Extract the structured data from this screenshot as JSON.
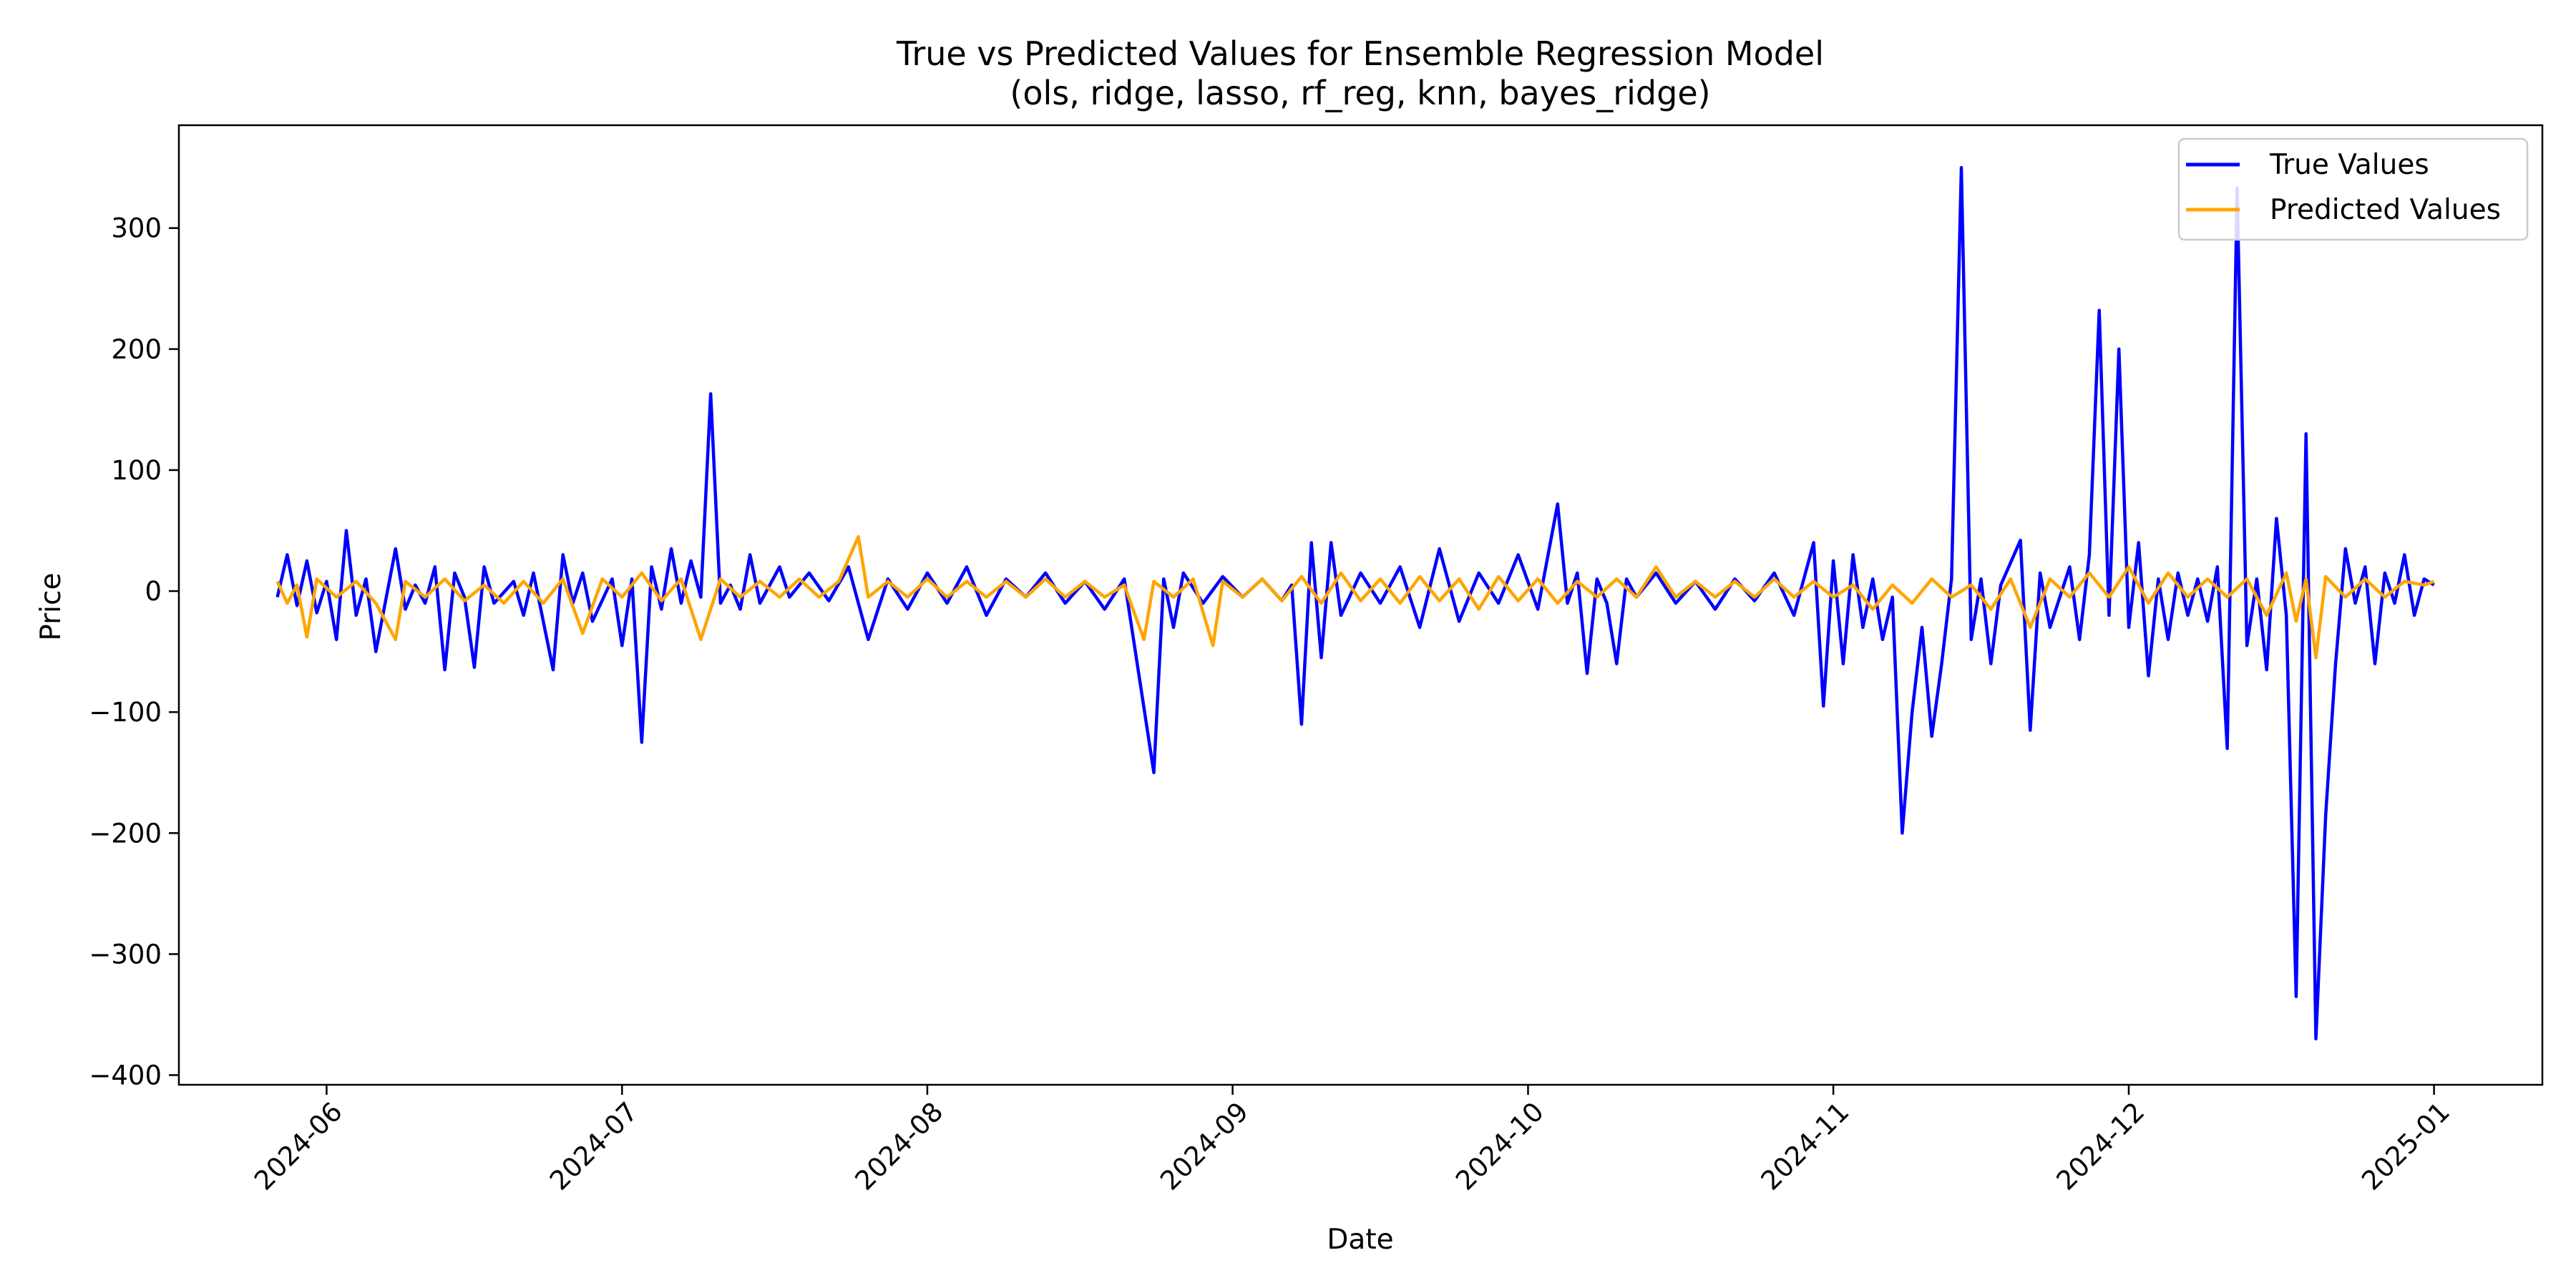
{
  "chart_data": {
    "type": "line",
    "title": "True vs Predicted Values for Ensemble Regression Model",
    "subtitle": "(ols, ridge, lasso, rf_reg, knn, bayes_ridge)",
    "xlabel": "Date",
    "ylabel": "Price",
    "x_range": [
      "2024-05-17",
      "2025-01-12"
    ],
    "ylim": [
      -408,
      385
    ],
    "x_ticks": [
      "2024-06",
      "2024-07",
      "2024-08",
      "2024-09",
      "2024-10",
      "2024-11",
      "2024-12",
      "2025-01"
    ],
    "y_ticks": [
      300,
      200,
      100,
      0,
      -100,
      -200,
      -300,
      -400
    ],
    "y_tick_labels": [
      "300",
      "200",
      "100",
      "0",
      "−100",
      "−200",
      "−300",
      "−400"
    ],
    "legend_position": "upper right",
    "grid": false,
    "series": [
      {
        "name": "True Values",
        "color": "#0000ff",
        "points": [
          [
            "2024-05-27",
            -5
          ],
          [
            "2024-05-28",
            30
          ],
          [
            "2024-05-29",
            -12
          ],
          [
            "2024-05-30",
            25
          ],
          [
            "2024-05-31",
            -18
          ],
          [
            "2024-06-01",
            8
          ],
          [
            "2024-06-02",
            -40
          ],
          [
            "2024-06-03",
            50
          ],
          [
            "2024-06-04",
            -20
          ],
          [
            "2024-06-05",
            10
          ],
          [
            "2024-06-06",
            -50
          ],
          [
            "2024-06-08",
            35
          ],
          [
            "2024-06-09",
            -15
          ],
          [
            "2024-06-10",
            5
          ],
          [
            "2024-06-11",
            -10
          ],
          [
            "2024-06-12",
            20
          ],
          [
            "2024-06-13",
            -65
          ],
          [
            "2024-06-14",
            15
          ],
          [
            "2024-06-15",
            -5
          ],
          [
            "2024-06-16",
            -63
          ],
          [
            "2024-06-17",
            20
          ],
          [
            "2024-06-18",
            -10
          ],
          [
            "2024-06-20",
            8
          ],
          [
            "2024-06-21",
            -20
          ],
          [
            "2024-06-22",
            15
          ],
          [
            "2024-06-24",
            -65
          ],
          [
            "2024-06-25",
            30
          ],
          [
            "2024-06-26",
            -10
          ],
          [
            "2024-06-27",
            15
          ],
          [
            "2024-06-28",
            -25
          ],
          [
            "2024-06-30",
            10
          ],
          [
            "2024-07-01",
            -45
          ],
          [
            "2024-07-02",
            10
          ],
          [
            "2024-07-03",
            -125
          ],
          [
            "2024-07-04",
            20
          ],
          [
            "2024-07-05",
            -15
          ],
          [
            "2024-07-06",
            35
          ],
          [
            "2024-07-07",
            -10
          ],
          [
            "2024-07-08",
            25
          ],
          [
            "2024-07-09",
            -5
          ],
          [
            "2024-07-10",
            163
          ],
          [
            "2024-07-11",
            -10
          ],
          [
            "2024-07-12",
            5
          ],
          [
            "2024-07-13",
            -15
          ],
          [
            "2024-07-14",
            30
          ],
          [
            "2024-07-15",
            -10
          ],
          [
            "2024-07-17",
            20
          ],
          [
            "2024-07-18",
            -5
          ],
          [
            "2024-07-20",
            15
          ],
          [
            "2024-07-22",
            -8
          ],
          [
            "2024-07-24",
            20
          ],
          [
            "2024-07-26",
            -40
          ],
          [
            "2024-07-28",
            10
          ],
          [
            "2024-07-30",
            -15
          ],
          [
            "2024-08-01",
            15
          ],
          [
            "2024-08-03",
            -10
          ],
          [
            "2024-08-05",
            20
          ],
          [
            "2024-08-07",
            -20
          ],
          [
            "2024-08-09",
            10
          ],
          [
            "2024-08-11",
            -5
          ],
          [
            "2024-08-13",
            15
          ],
          [
            "2024-08-15",
            -10
          ],
          [
            "2024-08-17",
            8
          ],
          [
            "2024-08-19",
            -15
          ],
          [
            "2024-08-21",
            10
          ],
          [
            "2024-08-24",
            -150
          ],
          [
            "2024-08-25",
            10
          ],
          [
            "2024-08-26",
            -30
          ],
          [
            "2024-08-27",
            15
          ],
          [
            "2024-08-29",
            -10
          ],
          [
            "2024-08-31",
            12
          ],
          [
            "2024-09-02",
            -5
          ],
          [
            "2024-09-04",
            10
          ],
          [
            "2024-09-06",
            -8
          ],
          [
            "2024-09-07",
            5
          ],
          [
            "2024-09-08",
            -110
          ],
          [
            "2024-09-09",
            40
          ],
          [
            "2024-09-10",
            -55
          ],
          [
            "2024-09-11",
            40
          ],
          [
            "2024-09-12",
            -20
          ],
          [
            "2024-09-14",
            15
          ],
          [
            "2024-09-16",
            -10
          ],
          [
            "2024-09-18",
            20
          ],
          [
            "2024-09-20",
            -30
          ],
          [
            "2024-09-22",
            35
          ],
          [
            "2024-09-24",
            -25
          ],
          [
            "2024-09-26",
            15
          ],
          [
            "2024-09-28",
            -10
          ],
          [
            "2024-09-30",
            30
          ],
          [
            "2024-10-02",
            -15
          ],
          [
            "2024-10-04",
            72
          ],
          [
            "2024-10-05",
            -10
          ],
          [
            "2024-10-06",
            15
          ],
          [
            "2024-10-07",
            -68
          ],
          [
            "2024-10-08",
            10
          ],
          [
            "2024-10-09",
            -10
          ],
          [
            "2024-10-10",
            -60
          ],
          [
            "2024-10-11",
            10
          ],
          [
            "2024-10-12",
            -5
          ],
          [
            "2024-10-14",
            15
          ],
          [
            "2024-10-16",
            -10
          ],
          [
            "2024-10-18",
            8
          ],
          [
            "2024-10-20",
            -15
          ],
          [
            "2024-10-22",
            10
          ],
          [
            "2024-10-24",
            -8
          ],
          [
            "2024-10-26",
            15
          ],
          [
            "2024-10-28",
            -20
          ],
          [
            "2024-10-30",
            40
          ],
          [
            "2024-10-31",
            -95
          ],
          [
            "2024-11-01",
            25
          ],
          [
            "2024-11-02",
            -60
          ],
          [
            "2024-11-03",
            30
          ],
          [
            "2024-11-04",
            -30
          ],
          [
            "2024-11-05",
            10
          ],
          [
            "2024-11-06",
            -40
          ],
          [
            "2024-11-07",
            -5
          ],
          [
            "2024-11-08",
            -200
          ],
          [
            "2024-11-09",
            -100
          ],
          [
            "2024-11-10",
            -30
          ],
          [
            "2024-11-11",
            -120
          ],
          [
            "2024-11-12",
            -60
          ],
          [
            "2024-11-13",
            10
          ],
          [
            "2024-11-14",
            350
          ],
          [
            "2024-11-15",
            -40
          ],
          [
            "2024-11-16",
            10
          ],
          [
            "2024-11-17",
            -60
          ],
          [
            "2024-11-18",
            5
          ],
          [
            "2024-11-20",
            42
          ],
          [
            "2024-11-21",
            -115
          ],
          [
            "2024-11-22",
            15
          ],
          [
            "2024-11-23",
            -30
          ],
          [
            "2024-11-25",
            20
          ],
          [
            "2024-11-26",
            -40
          ],
          [
            "2024-11-27",
            30
          ],
          [
            "2024-11-28",
            232
          ],
          [
            "2024-11-29",
            -20
          ],
          [
            "2024-11-30",
            200
          ],
          [
            "2024-12-01",
            -30
          ],
          [
            "2024-12-02",
            40
          ],
          [
            "2024-12-03",
            -70
          ],
          [
            "2024-12-04",
            10
          ],
          [
            "2024-12-05",
            -40
          ],
          [
            "2024-12-06",
            15
          ],
          [
            "2024-12-07",
            -20
          ],
          [
            "2024-12-08",
            10
          ],
          [
            "2024-12-09",
            -25
          ],
          [
            "2024-12-10",
            20
          ],
          [
            "2024-12-11",
            -130
          ],
          [
            "2024-12-12",
            333
          ],
          [
            "2024-12-13",
            -45
          ],
          [
            "2024-12-14",
            10
          ],
          [
            "2024-12-15",
            -65
          ],
          [
            "2024-12-16",
            60
          ],
          [
            "2024-12-17",
            -20
          ],
          [
            "2024-12-18",
            -335
          ],
          [
            "2024-12-19",
            130
          ],
          [
            "2024-12-20",
            -370
          ],
          [
            "2024-12-21",
            -185
          ],
          [
            "2024-12-22",
            -60
          ],
          [
            "2024-12-23",
            35
          ],
          [
            "2024-12-24",
            -10
          ],
          [
            "2024-12-25",
            20
          ],
          [
            "2024-12-26",
            -60
          ],
          [
            "2024-12-27",
            15
          ],
          [
            "2024-12-28",
            -10
          ],
          [
            "2024-12-29",
            30
          ],
          [
            "2024-12-30",
            -20
          ],
          [
            "2024-12-31",
            10
          ],
          [
            "2025-01-01",
            5
          ]
        ]
      },
      {
        "name": "Predicted Values",
        "color": "#ffa500",
        "points": [
          [
            "2024-05-27",
            8
          ],
          [
            "2024-05-28",
            -10
          ],
          [
            "2024-05-29",
            5
          ],
          [
            "2024-05-30",
            -38
          ],
          [
            "2024-05-31",
            10
          ],
          [
            "2024-06-02",
            -5
          ],
          [
            "2024-06-04",
            8
          ],
          [
            "2024-06-06",
            -10
          ],
          [
            "2024-06-08",
            -40
          ],
          [
            "2024-06-09",
            8
          ],
          [
            "2024-06-11",
            -5
          ],
          [
            "2024-06-13",
            10
          ],
          [
            "2024-06-15",
            -8
          ],
          [
            "2024-06-17",
            5
          ],
          [
            "2024-06-19",
            -10
          ],
          [
            "2024-06-21",
            8
          ],
          [
            "2024-06-23",
            -10
          ],
          [
            "2024-06-25",
            10
          ],
          [
            "2024-06-27",
            -35
          ],
          [
            "2024-06-29",
            10
          ],
          [
            "2024-07-01",
            -5
          ],
          [
            "2024-07-03",
            15
          ],
          [
            "2024-07-05",
            -8
          ],
          [
            "2024-07-07",
            10
          ],
          [
            "2024-07-09",
            -40
          ],
          [
            "2024-07-11",
            10
          ],
          [
            "2024-07-13",
            -5
          ],
          [
            "2024-07-15",
            8
          ],
          [
            "2024-07-17",
            -5
          ],
          [
            "2024-07-19",
            10
          ],
          [
            "2024-07-21",
            -5
          ],
          [
            "2024-07-23",
            8
          ],
          [
            "2024-07-25",
            45
          ],
          [
            "2024-07-26",
            -5
          ],
          [
            "2024-07-28",
            8
          ],
          [
            "2024-07-30",
            -5
          ],
          [
            "2024-08-01",
            10
          ],
          [
            "2024-08-03",
            -5
          ],
          [
            "2024-08-05",
            8
          ],
          [
            "2024-08-07",
            -5
          ],
          [
            "2024-08-09",
            8
          ],
          [
            "2024-08-11",
            -5
          ],
          [
            "2024-08-13",
            10
          ],
          [
            "2024-08-15",
            -5
          ],
          [
            "2024-08-17",
            8
          ],
          [
            "2024-08-19",
            -5
          ],
          [
            "2024-08-21",
            5
          ],
          [
            "2024-08-23",
            -40
          ],
          [
            "2024-08-24",
            8
          ],
          [
            "2024-08-26",
            -5
          ],
          [
            "2024-08-28",
            10
          ],
          [
            "2024-08-30",
            -45
          ],
          [
            "2024-08-31",
            8
          ],
          [
            "2024-09-02",
            -5
          ],
          [
            "2024-09-04",
            10
          ],
          [
            "2024-09-06",
            -8
          ],
          [
            "2024-09-08",
            12
          ],
          [
            "2024-09-10",
            -10
          ],
          [
            "2024-09-12",
            15
          ],
          [
            "2024-09-14",
            -8
          ],
          [
            "2024-09-16",
            10
          ],
          [
            "2024-09-18",
            -10
          ],
          [
            "2024-09-20",
            12
          ],
          [
            "2024-09-22",
            -8
          ],
          [
            "2024-09-24",
            10
          ],
          [
            "2024-09-26",
            -15
          ],
          [
            "2024-09-28",
            12
          ],
          [
            "2024-09-30",
            -8
          ],
          [
            "2024-10-02",
            10
          ],
          [
            "2024-10-04",
            -10
          ],
          [
            "2024-10-06",
            8
          ],
          [
            "2024-10-08",
            -5
          ],
          [
            "2024-10-10",
            10
          ],
          [
            "2024-10-12",
            -5
          ],
          [
            "2024-10-14",
            20
          ],
          [
            "2024-10-16",
            -5
          ],
          [
            "2024-10-18",
            8
          ],
          [
            "2024-10-20",
            -5
          ],
          [
            "2024-10-22",
            8
          ],
          [
            "2024-10-24",
            -5
          ],
          [
            "2024-10-26",
            10
          ],
          [
            "2024-10-28",
            -5
          ],
          [
            "2024-10-30",
            8
          ],
          [
            "2024-11-01",
            -5
          ],
          [
            "2024-11-03",
            5
          ],
          [
            "2024-11-05",
            -15
          ],
          [
            "2024-11-07",
            5
          ],
          [
            "2024-11-09",
            -10
          ],
          [
            "2024-11-11",
            10
          ],
          [
            "2024-11-13",
            -5
          ],
          [
            "2024-11-15",
            5
          ],
          [
            "2024-11-17",
            -15
          ],
          [
            "2024-11-19",
            10
          ],
          [
            "2024-11-21",
            -30
          ],
          [
            "2024-11-23",
            10
          ],
          [
            "2024-11-25",
            -5
          ],
          [
            "2024-11-27",
            15
          ],
          [
            "2024-11-29",
            -5
          ],
          [
            "2024-12-01",
            20
          ],
          [
            "2024-12-03",
            -10
          ],
          [
            "2024-12-05",
            15
          ],
          [
            "2024-12-07",
            -5
          ],
          [
            "2024-12-09",
            10
          ],
          [
            "2024-12-11",
            -5
          ],
          [
            "2024-12-13",
            10
          ],
          [
            "2024-12-15",
            -20
          ],
          [
            "2024-12-17",
            15
          ],
          [
            "2024-12-18",
            -25
          ],
          [
            "2024-12-19",
            10
          ],
          [
            "2024-12-20",
            -55
          ],
          [
            "2024-12-21",
            12
          ],
          [
            "2024-12-23",
            -5
          ],
          [
            "2024-12-25",
            10
          ],
          [
            "2024-12-27",
            -5
          ],
          [
            "2024-12-29",
            8
          ],
          [
            "2024-12-31",
            5
          ],
          [
            "2025-01-01",
            8
          ]
        ]
      }
    ]
  }
}
